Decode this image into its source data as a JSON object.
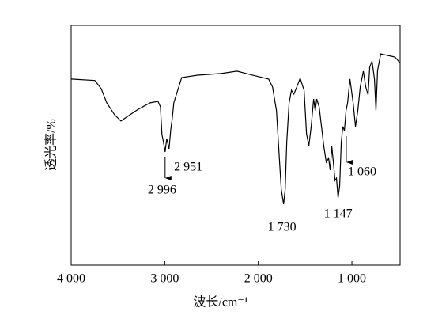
{
  "chart_data": {
    "type": "line",
    "x_label": "波长/cm⁻¹",
    "y_label": "透光率/%",
    "xlim": [
      4000,
      485
    ],
    "ylim": [
      0,
      100
    ],
    "xticks": [
      {
        "value": 4000,
        "label": "4 000"
      },
      {
        "value": 3000,
        "label": "3 000"
      },
      {
        "value": 2000,
        "label": "2 000"
      },
      {
        "value": 1000,
        "label": "1 000"
      }
    ],
    "color": "#000000",
    "x": [
      4000,
      3747,
      3679,
      3620,
      3536,
      3468,
      3409,
      3283,
      3156,
      3072,
      3046,
      3030,
      3013,
      2996,
      2979,
      2954,
      2937,
      2920,
      2903,
      2819,
      2650,
      2397,
      2228,
      2059,
      1890,
      1848,
      1806,
      1781,
      1755,
      1730,
      1713,
      1696,
      1671,
      1646,
      1620,
      1586,
      1553,
      1511,
      1485,
      1460,
      1435,
      1409,
      1392,
      1376,
      1350,
      1325,
      1300,
      1274,
      1249,
      1232,
      1215,
      1198,
      1181,
      1165,
      1148,
      1131,
      1114,
      1097,
      1080,
      1063,
      1046,
      1021,
      987,
      962,
      937,
      911,
      878,
      852,
      827,
      810,
      785,
      759,
      743,
      726,
      692,
      624,
      540,
      489
    ],
    "values": [
      77.6,
      77.0,
      73.6,
      67.7,
      62.7,
      60.1,
      61.7,
      65.0,
      67.7,
      68.3,
      66.0,
      54.5,
      51.2,
      47.2,
      52.8,
      48.5,
      56.1,
      61.1,
      67.7,
      78.2,
      79.2,
      79.9,
      80.9,
      79.2,
      77.6,
      74.3,
      64.4,
      48.2,
      31.7,
      25.4,
      31.7,
      51.5,
      67.7,
      72.9,
      71.3,
      74.6,
      77.9,
      72.9,
      54.8,
      49.8,
      57.8,
      69.3,
      64.4,
      69.3,
      66.0,
      57.8,
      49.5,
      42.9,
      44.6,
      39.6,
      49.5,
      42.9,
      35.3,
      36.3,
      28.1,
      33.0,
      51.2,
      57.8,
      56.1,
      64.4,
      67.7,
      77.6,
      67.7,
      57.8,
      64.4,
      74.3,
      80.9,
      74.3,
      71.0,
      82.5,
      85.1,
      77.6,
      64.4,
      81.2,
      88.1,
      87.5,
      86.8,
      84.5
    ],
    "annotations": [
      {
        "label": "2 996",
        "x": 2996,
        "arrow": true
      },
      {
        "label": "2 951",
        "x": 2951,
        "arrow": false
      },
      {
        "label": "1 730",
        "x": 1730,
        "arrow": false
      },
      {
        "label": "1 147",
        "x": 1147,
        "arrow": false
      },
      {
        "label": "1 060",
        "x": 1060,
        "arrow": true
      }
    ]
  }
}
